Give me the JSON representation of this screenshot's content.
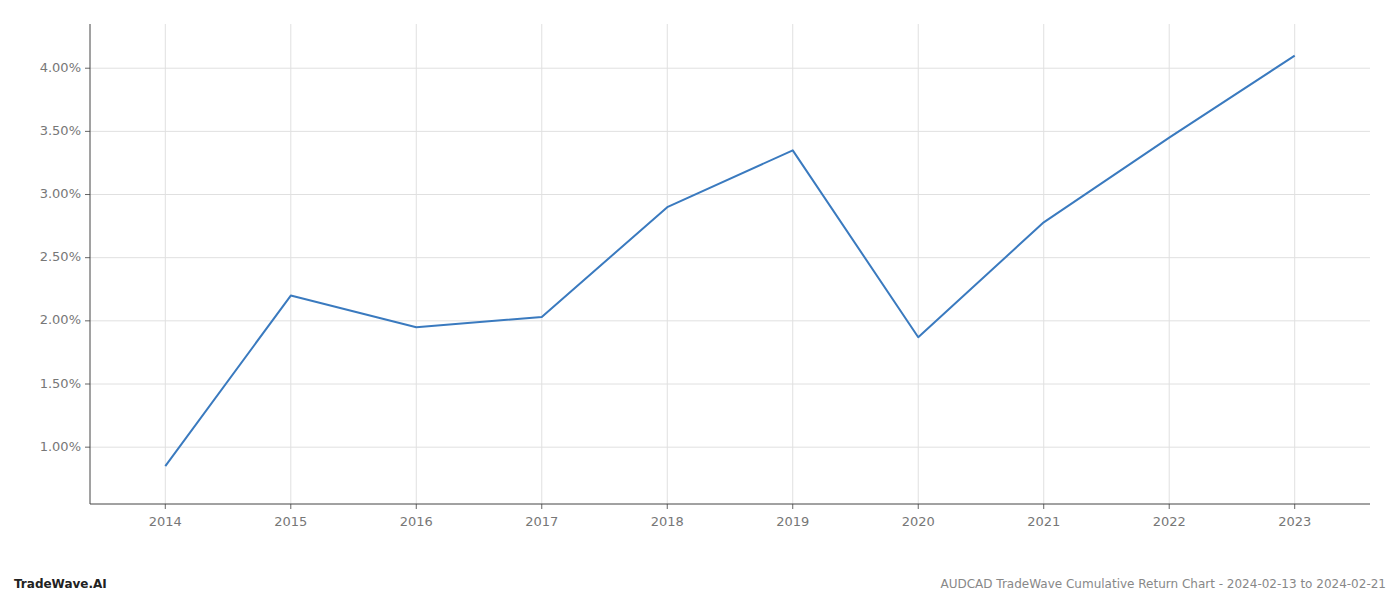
{
  "chart_data": {
    "type": "line",
    "x": [
      2014,
      2015,
      2016,
      2017,
      2018,
      2019,
      2020,
      2021,
      2022,
      2023
    ],
    "values": [
      0.0085,
      0.022,
      0.0195,
      0.0203,
      0.029,
      0.0335,
      0.0187,
      0.0278,
      0.0345,
      0.041
    ],
    "color": "#3a7abf",
    "xlim": [
      2013.4,
      2023.6
    ],
    "ylim": [
      0.0055,
      0.0435
    ],
    "xticks": [
      2014,
      2015,
      2016,
      2017,
      2018,
      2019,
      2020,
      2021,
      2022,
      2023
    ],
    "yticks": [
      {
        "value": 0.01,
        "label": "1.00%"
      },
      {
        "value": 0.015,
        "label": "1.50%"
      },
      {
        "value": 0.02,
        "label": "2.00%"
      },
      {
        "value": 0.025,
        "label": "2.50%"
      },
      {
        "value": 0.03,
        "label": "3.00%"
      },
      {
        "value": 0.035,
        "label": "3.50%"
      },
      {
        "value": 0.04,
        "label": "4.00%"
      }
    ],
    "grid": true,
    "annotations": [
      "TradeWave.AI",
      "AUDCAD TradeWave Cumulative Return Chart - 2024-02-13 to 2024-02-21"
    ]
  }
}
